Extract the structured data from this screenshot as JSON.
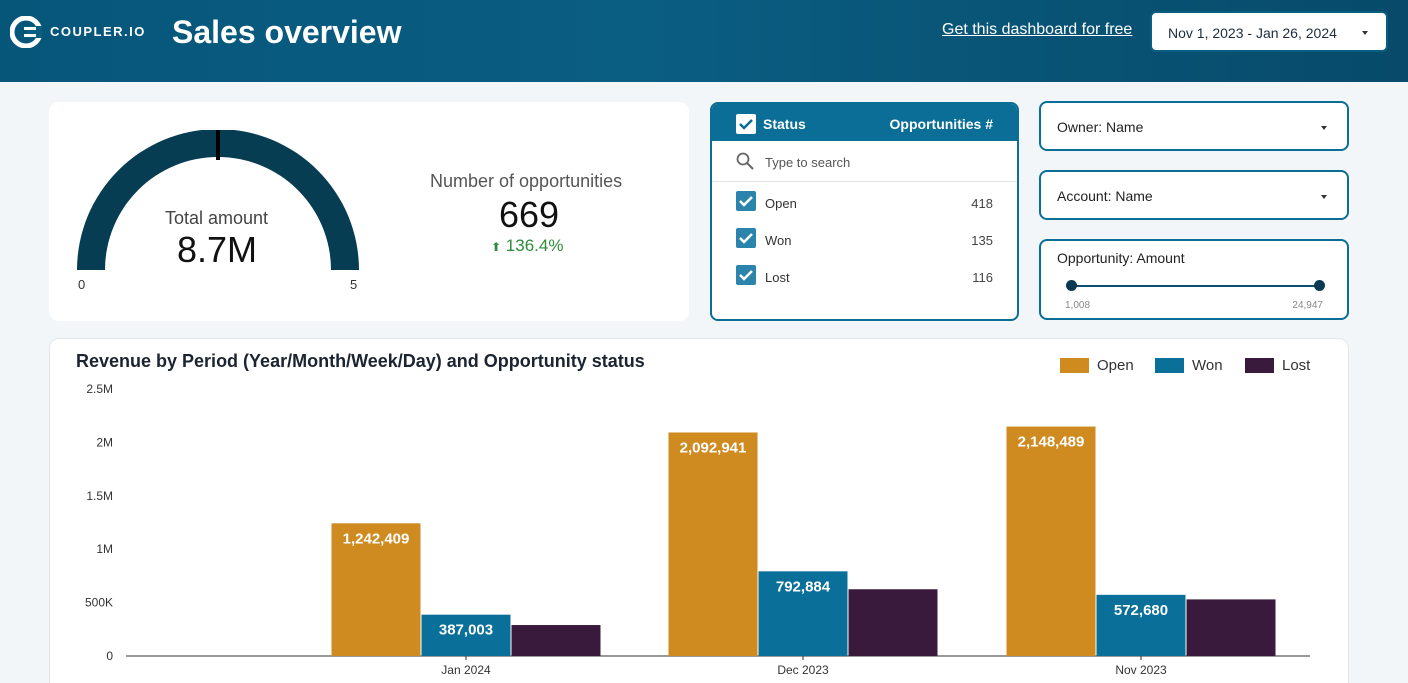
{
  "header": {
    "brand": "COUPLER.IO",
    "title": "Sales overview",
    "cta": "Get this dashboard for free",
    "date_range": "Nov 1, 2023 - Jan 26, 2024"
  },
  "kpis": {
    "gauge_label": "Total amount",
    "gauge_value": "8.7M",
    "gauge_min": "0",
    "gauge_max": "5",
    "opportunities_label": "Number of opportunities",
    "opportunities_value": "669",
    "opportunities_change": "136.4%"
  },
  "status_filter": {
    "header_status": "Status",
    "header_count": "Opportunities #",
    "search_placeholder": "Type to search",
    "items": [
      {
        "label": "Open",
        "count": "418"
      },
      {
        "label": "Won",
        "count": "135"
      },
      {
        "label": "Lost",
        "count": "116"
      }
    ]
  },
  "filters": {
    "owner": "Owner: Name",
    "account": "Account: Name",
    "amount_label": "Opportunity: Amount",
    "amount_min": "1,008",
    "amount_max": "24,947"
  },
  "colors": {
    "open": "#cf8a20",
    "won": "#0b7099",
    "lost": "#3a1a3c",
    "header": "#06567a"
  },
  "chart_data": {
    "type": "bar",
    "title": "Revenue by Period (Year/Month/Week/Day) and Opportunity status",
    "categories": [
      "Jan 2024",
      "Dec 2023",
      "Nov 2023"
    ],
    "series": [
      {
        "name": "Open",
        "values": [
          1242409,
          2092941,
          2148489
        ],
        "labels": [
          "1,242,409",
          "2,092,941",
          "2,148,489"
        ]
      },
      {
        "name": "Won",
        "values": [
          387003,
          792884,
          572680
        ],
        "labels": [
          "387,003",
          "792,884",
          "572,680"
        ]
      },
      {
        "name": "Lost",
        "values": [
          290000,
          625000,
          530000
        ],
        "labels": [
          "",
          "",
          ""
        ]
      }
    ],
    "yticks": [
      "0",
      "500K",
      "1M",
      "1.5M",
      "2M",
      "2.5M"
    ],
    "ytick_values": [
      0,
      500000,
      1000000,
      1500000,
      2000000,
      2500000
    ],
    "ylim": [
      0,
      2500000
    ],
    "legend_position": "top-right",
    "grid": false
  }
}
